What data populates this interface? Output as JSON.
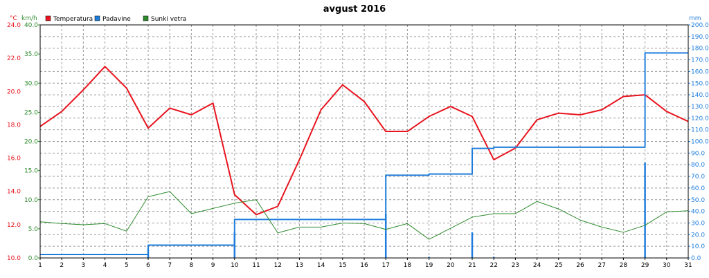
{
  "chart_data": {
    "type": "line",
    "title": "avgust 2016",
    "units": {
      "temperature": "°C",
      "wind": "km/h",
      "precip": "mm"
    },
    "colors": {
      "temperature": "#e8141e",
      "precip": "#1e7ddc",
      "wind": "#2e8b2e",
      "temp_axis": "#e8141e",
      "precip_axis": "#1e7ddc",
      "wind_axis": "#2e8b2e"
    },
    "legend": [
      {
        "name": "Temperatura",
        "color": "#e8141e"
      },
      {
        "name": "Padavine",
        "color": "#1e7ddc"
      },
      {
        "name": "Sunki vetra",
        "color": "#2e8b2e"
      }
    ],
    "legend_position": "top-left",
    "grid": true,
    "x_ticks": [
      "1",
      "2",
      "3",
      "4",
      "5",
      "6",
      "7",
      "8",
      "9",
      "10",
      "11",
      "12",
      "13",
      "14",
      "15",
      "16",
      "17",
      "18",
      "19",
      "20",
      "21",
      "22",
      "23",
      "24",
      "25",
      "26",
      "27",
      "28",
      "29",
      "30",
      "31"
    ],
    "y_temp_ticks": [
      "10.0",
      "12.0",
      "14.0",
      "16.0",
      "18.0",
      "20.0",
      "22.0",
      "24.0"
    ],
    "y_wind_ticks": [
      "0.0",
      "5.0",
      "10.0",
      "15.0",
      "20.0",
      "25.0",
      "30.0",
      "35.0",
      "40.0"
    ],
    "y_precip_ticks": [
      "0.0",
      "10.0",
      "20.0",
      "30.0",
      "40.0",
      "50.0",
      "60.0",
      "70.0",
      "80.0",
      "90.0",
      "100.0",
      "110.0",
      "120.0",
      "130.0",
      "140.0",
      "150.0",
      "160.0",
      "170.0",
      "180.0",
      "190.0",
      "200.0"
    ],
    "ylim_temp": [
      10,
      24
    ],
    "ylim_wind": [
      0,
      40
    ],
    "ylim_precip": [
      0,
      200
    ],
    "series": [
      {
        "name": "Temperatura",
        "axis": "temp",
        "x": [
          1,
          2,
          3,
          4,
          5,
          6,
          7,
          8,
          9,
          10,
          11,
          12,
          13,
          14,
          15,
          16,
          17,
          18,
          19,
          20,
          21,
          22,
          23,
          24,
          25,
          26,
          27,
          28,
          29,
          30,
          31
        ],
        "values": [
          17.9,
          18.8,
          20.1,
          21.5,
          20.2,
          17.8,
          19.0,
          18.6,
          19.3,
          13.8,
          12.6,
          13.1,
          15.9,
          18.9,
          20.4,
          19.4,
          17.6,
          17.6,
          18.5,
          19.1,
          18.5,
          15.9,
          16.6,
          18.3,
          18.7,
          18.6,
          18.9,
          19.7,
          19.8,
          18.8,
          18.2
        ],
        "style": "line"
      },
      {
        "name": "Padavine",
        "axis": "precip",
        "x": [
          1,
          2,
          3,
          4,
          5,
          6,
          7,
          8,
          9,
          10,
          11,
          12,
          13,
          14,
          15,
          16,
          17,
          18,
          19,
          20,
          21,
          22,
          23,
          24,
          25,
          26,
          27,
          28,
          29,
          30,
          31
        ],
        "values": [
          3,
          3,
          3,
          3,
          3,
          11,
          11,
          11,
          11,
          33,
          33,
          33,
          33,
          33,
          33,
          33,
          71,
          71,
          72,
          72,
          94,
          95,
          95,
          95,
          95,
          95,
          95,
          95,
          176,
          176,
          176
        ],
        "style": "step"
      },
      {
        "name": "Sunki vetra",
        "axis": "wind",
        "x": [
          1,
          2,
          3,
          4,
          5,
          6,
          7,
          8,
          9,
          10,
          11,
          12,
          13,
          14,
          15,
          16,
          17,
          18,
          19,
          20,
          21,
          22,
          23,
          24,
          25,
          26,
          27,
          28,
          29,
          30,
          31
        ],
        "values": [
          6.2,
          5.9,
          5.7,
          5.9,
          4.6,
          10.5,
          11.4,
          7.6,
          8.5,
          9.4,
          10.0,
          4.3,
          5.3,
          5.3,
          6.0,
          5.9,
          4.9,
          5.9,
          3.2,
          5.1,
          7.0,
          7.6,
          7.6,
          9.7,
          8.4,
          6.5,
          5.3,
          4.4,
          5.6,
          7.9,
          8.1
        ],
        "style": "line"
      }
    ],
    "daily_precip": {
      "name": "Padavine",
      "axis": "precip",
      "x": [
        6,
        10,
        17,
        19,
        21,
        22,
        29
      ],
      "values": [
        8,
        22,
        38,
        1,
        22,
        1,
        82
      ]
    }
  }
}
